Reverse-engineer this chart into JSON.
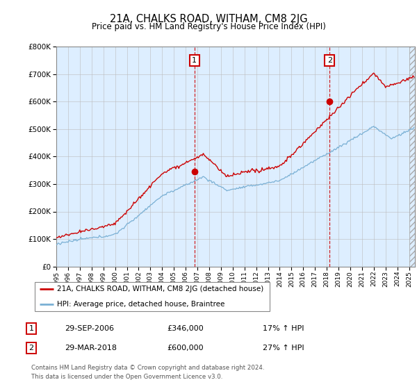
{
  "title": "21A, CHALKS ROAD, WITHAM, CM8 2JG",
  "subtitle": "Price paid vs. HM Land Registry's House Price Index (HPI)",
  "hpi_label": "HPI: Average price, detached house, Braintree",
  "property_label": "21A, CHALKS ROAD, WITHAM, CM8 2JG (detached house)",
  "transaction1_date": "29-SEP-2006",
  "transaction1_price": 346000,
  "transaction1_hpi": "17% ↑ HPI",
  "transaction2_date": "29-MAR-2018",
  "transaction2_price": 600000,
  "transaction2_hpi": "27% ↑ HPI",
  "footer": "Contains HM Land Registry data © Crown copyright and database right 2024.\nThis data is licensed under the Open Government Licence v3.0.",
  "hpi_color": "#7ab0d4",
  "property_color": "#cc0000",
  "background_color": "#ddeeff",
  "ylim": [
    0,
    800000
  ],
  "yticks": [
    0,
    100000,
    200000,
    300000,
    400000,
    500000,
    600000,
    700000,
    800000
  ],
  "xmin": 1995,
  "xmax": 2025.5
}
